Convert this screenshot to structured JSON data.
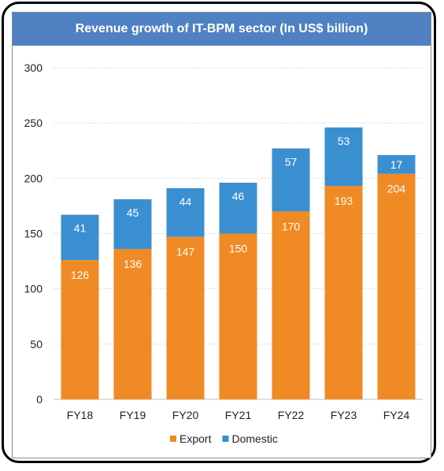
{
  "chart_data": {
    "type": "bar",
    "stacked": true,
    "title": "Revenue growth of IT-BPM sector (In US$ billion)",
    "categories": [
      "FY18",
      "FY19",
      "FY20",
      "FY21",
      "FY22",
      "FY23",
      "FY24"
    ],
    "series": [
      {
        "name": "Export",
        "color": "#f08a24",
        "values": [
          126,
          136,
          147,
          150,
          170,
          193,
          204
        ]
      },
      {
        "name": "Domestic",
        "color": "#3a8fd1",
        "values": [
          41,
          45,
          44,
          46,
          57,
          53,
          17
        ]
      }
    ],
    "ylim": [
      0,
      300
    ],
    "yticks": [
      0,
      50,
      100,
      150,
      200,
      250,
      300
    ],
    "grid": true,
    "legend": "bottom"
  }
}
